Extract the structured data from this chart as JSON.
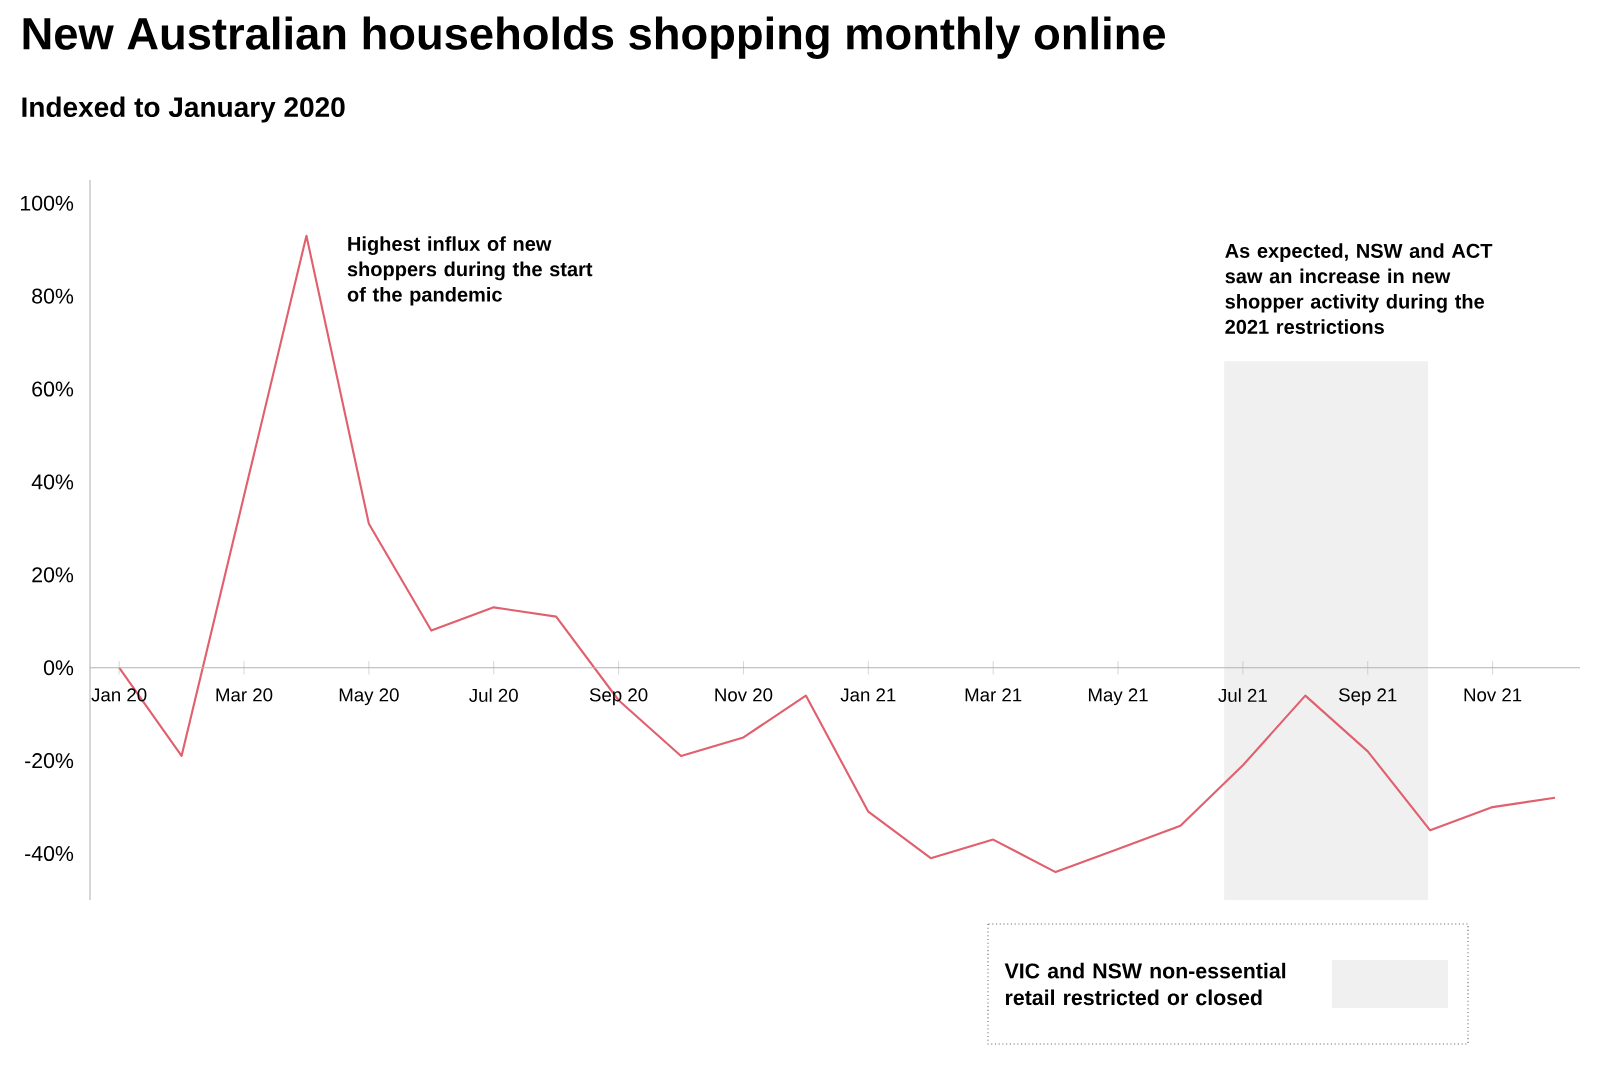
{
  "chart_data": {
    "type": "line",
    "title": "New Australian households shopping monthly online",
    "subtitle": "Indexed to January 2020",
    "x": [
      "2020-01",
      "2020-02",
      "2020-03",
      "2020-04",
      "2020-05",
      "2020-06",
      "2020-07",
      "2020-08",
      "2020-09",
      "2020-10",
      "2020-11",
      "2020-12",
      "2021-01",
      "2021-02",
      "2021-03",
      "2021-04",
      "2021-05",
      "2021-06",
      "2021-07",
      "2021-08",
      "2021-09",
      "2021-10",
      "2021-11",
      "2021-12"
    ],
    "series": [
      {
        "color": "#e0606e",
        "values": [
          0,
          -19,
          37,
          93,
          31,
          8,
          13,
          11,
          -7,
          -19,
          -15,
          -6,
          -31,
          -41,
          -37,
          -44,
          -39,
          -34,
          -21,
          -6,
          -18,
          -35,
          -30,
          -28
        ]
      }
    ],
    "xlim": [
      "2019-12-17",
      "2021-12-13"
    ],
    "xticks": [
      {
        "value": "2020-01",
        "label": "Jan 20"
      },
      {
        "value": "2020-03",
        "label": "Mar 20"
      },
      {
        "value": "2020-05",
        "label": "May 20"
      },
      {
        "value": "2020-07",
        "label": "Jul 20"
      },
      {
        "value": "2020-09",
        "label": "Sep 20"
      },
      {
        "value": "2020-11",
        "label": "Nov 20"
      },
      {
        "value": "2021-01",
        "label": "Jan 21"
      },
      {
        "value": "2021-03",
        "label": "Mar 21"
      },
      {
        "value": "2021-05",
        "label": "May 21"
      },
      {
        "value": "2021-07",
        "label": "Jul 21"
      },
      {
        "value": "2021-09",
        "label": "Sep 21"
      },
      {
        "value": "2021-11",
        "label": "Nov 21"
      }
    ],
    "ylim": [
      -50,
      105
    ],
    "yticks": [
      {
        "value": -40,
        "label": "-40%"
      },
      {
        "value": -20,
        "label": "-20%"
      },
      {
        "value": 0,
        "label": "0%"
      },
      {
        "value": 20,
        "label": "20%"
      },
      {
        "value": 40,
        "label": "40%"
      },
      {
        "value": 60,
        "label": "60%"
      },
      {
        "value": 80,
        "label": "80%"
      },
      {
        "value": 100,
        "label": "100%"
      }
    ],
    "bands": [
      {
        "axis": "x",
        "from": "2021-06-22",
        "to": "2021-09-30",
        "label": "VIC and NSW non-essential retail restricted or closed",
        "color": "#f0f0f0"
      }
    ],
    "annotations": [
      {
        "text": "Highest influx of new shoppers during the start of the pandemic",
        "x": "2020-04",
        "y": 93
      },
      "As expected, NSW and ACT saw an increase in new shopper activity during the 2021 restrictions"
    ],
    "grid": false,
    "marker": "none",
    "line_style": "solid"
  }
}
